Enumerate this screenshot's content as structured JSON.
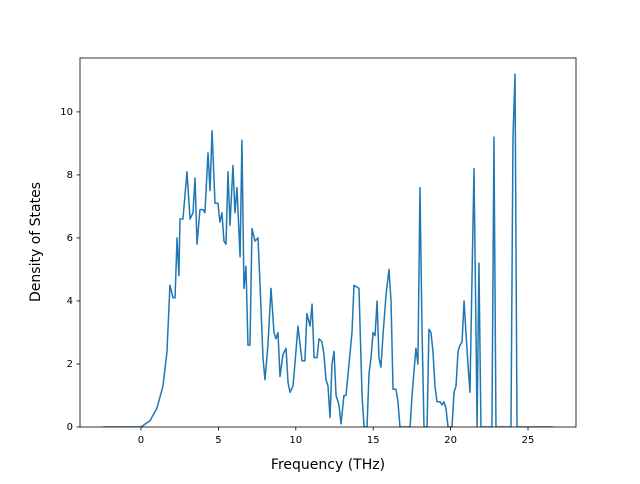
{
  "chart_data": {
    "type": "line",
    "xlabel": "Frequency (THz)",
    "ylabel": "Density of States",
    "xlim": [
      -3.94,
      28.1
    ],
    "ylim": [
      0,
      11.71
    ],
    "xticks": [
      0,
      5,
      10,
      15,
      20,
      25
    ],
    "yticks": [
      0,
      2,
      4,
      6,
      8,
      10
    ],
    "series": [
      {
        "color": "#1f77b4",
        "x": [
          -2.45,
          0,
          0.58,
          1.03,
          1.42,
          1.68,
          1.87,
          2.07,
          2.2,
          2.33,
          2.45,
          2.52,
          2.71,
          2.97,
          3.17,
          3.36,
          3.49,
          3.62,
          3.81,
          4.01,
          4.13,
          4.33,
          4.46,
          4.59,
          4.78,
          4.97,
          5.1,
          5.23,
          5.36,
          5.49,
          5.62,
          5.75,
          5.94,
          6.07,
          6.2,
          6.4,
          6.52,
          6.65,
          6.78,
          6.91,
          7.04,
          7.17,
          7.36,
          7.56,
          7.75,
          7.88,
          8.01,
          8.2,
          8.4,
          8.59,
          8.72,
          8.85,
          8.98,
          9.17,
          9.37,
          9.5,
          9.63,
          9.82,
          10.01,
          10.14,
          10.4,
          10.59,
          10.72,
          10.92,
          11.05,
          11.18,
          11.37,
          11.5,
          11.69,
          11.82,
          11.95,
          12.08,
          12.21,
          12.34,
          12.47,
          12.6,
          12.79,
          12.92,
          13.11,
          13.24,
          13.44,
          13.63,
          13.76,
          14.08,
          14.28,
          14.41,
          14.6,
          14.73,
          14.86,
          14.99,
          15.12,
          15.25,
          15.37,
          15.5,
          15.63,
          15.83,
          16.02,
          16.15,
          16.28,
          16.47,
          16.6,
          16.73,
          17.38,
          17.51,
          17.64,
          17.76,
          17.89,
          18.02,
          18.15,
          18.28,
          18.48,
          18.6,
          18.73,
          18.86,
          18.99,
          19.12,
          19.32,
          19.44,
          19.57,
          19.7,
          19.83,
          20.09,
          20.22,
          20.35,
          20.48,
          20.61,
          20.74,
          20.87,
          20.99,
          21.12,
          21.25,
          21.51,
          21.64,
          21.71,
          21.83,
          21.96,
          22.67,
          22.8,
          22.93,
          23.9,
          24.03,
          24.16,
          24.29,
          26.61
        ],
        "values": [
          0,
          0,
          0.2,
          0.6,
          1.3,
          2.4,
          4.5,
          4.1,
          4.1,
          6.0,
          4.8,
          6.6,
          6.6,
          8.1,
          6.6,
          6.8,
          7.9,
          5.8,
          6.9,
          6.9,
          6.8,
          8.7,
          7.5,
          9.4,
          7.1,
          7.1,
          6.5,
          6.8,
          5.9,
          5.8,
          8.1,
          6.4,
          8.3,
          6.8,
          7.6,
          5.4,
          9.1,
          4.4,
          5.1,
          2.6,
          2.6,
          6.3,
          5.9,
          6.0,
          3.8,
          2.2,
          1.5,
          2.6,
          4.4,
          3.0,
          2.8,
          3.0,
          1.6,
          2.3,
          2.5,
          1.4,
          1.1,
          1.3,
          2.4,
          3.2,
          2.1,
          2.1,
          3.6,
          3.2,
          3.9,
          2.2,
          2.2,
          2.8,
          2.7,
          2.3,
          1.5,
          1.3,
          0.3,
          2.0,
          2.4,
          1.0,
          0.7,
          0.1,
          1.0,
          1.0,
          2.0,
          3.0,
          4.5,
          4.4,
          1.0,
          0,
          0,
          1.7,
          2.2,
          3.0,
          2.9,
          4.0,
          2.2,
          1.9,
          2.9,
          4.2,
          5.0,
          4.0,
          1.2,
          1.2,
          0.8,
          0,
          0,
          1.0,
          1.8,
          2.5,
          2.0,
          7.6,
          3.2,
          0,
          0,
          3.1,
          3.0,
          2.4,
          1.3,
          0.8,
          0.8,
          0.7,
          0.8,
          0.6,
          0,
          0,
          1.1,
          1.3,
          2.4,
          2.6,
          2.7,
          4.0,
          3.0,
          2.0,
          1.1,
          8.2,
          3.0,
          0,
          5.2,
          0,
          0,
          9.2,
          0,
          0,
          9.2,
          11.2,
          0,
          0
        ]
      }
    ]
  }
}
